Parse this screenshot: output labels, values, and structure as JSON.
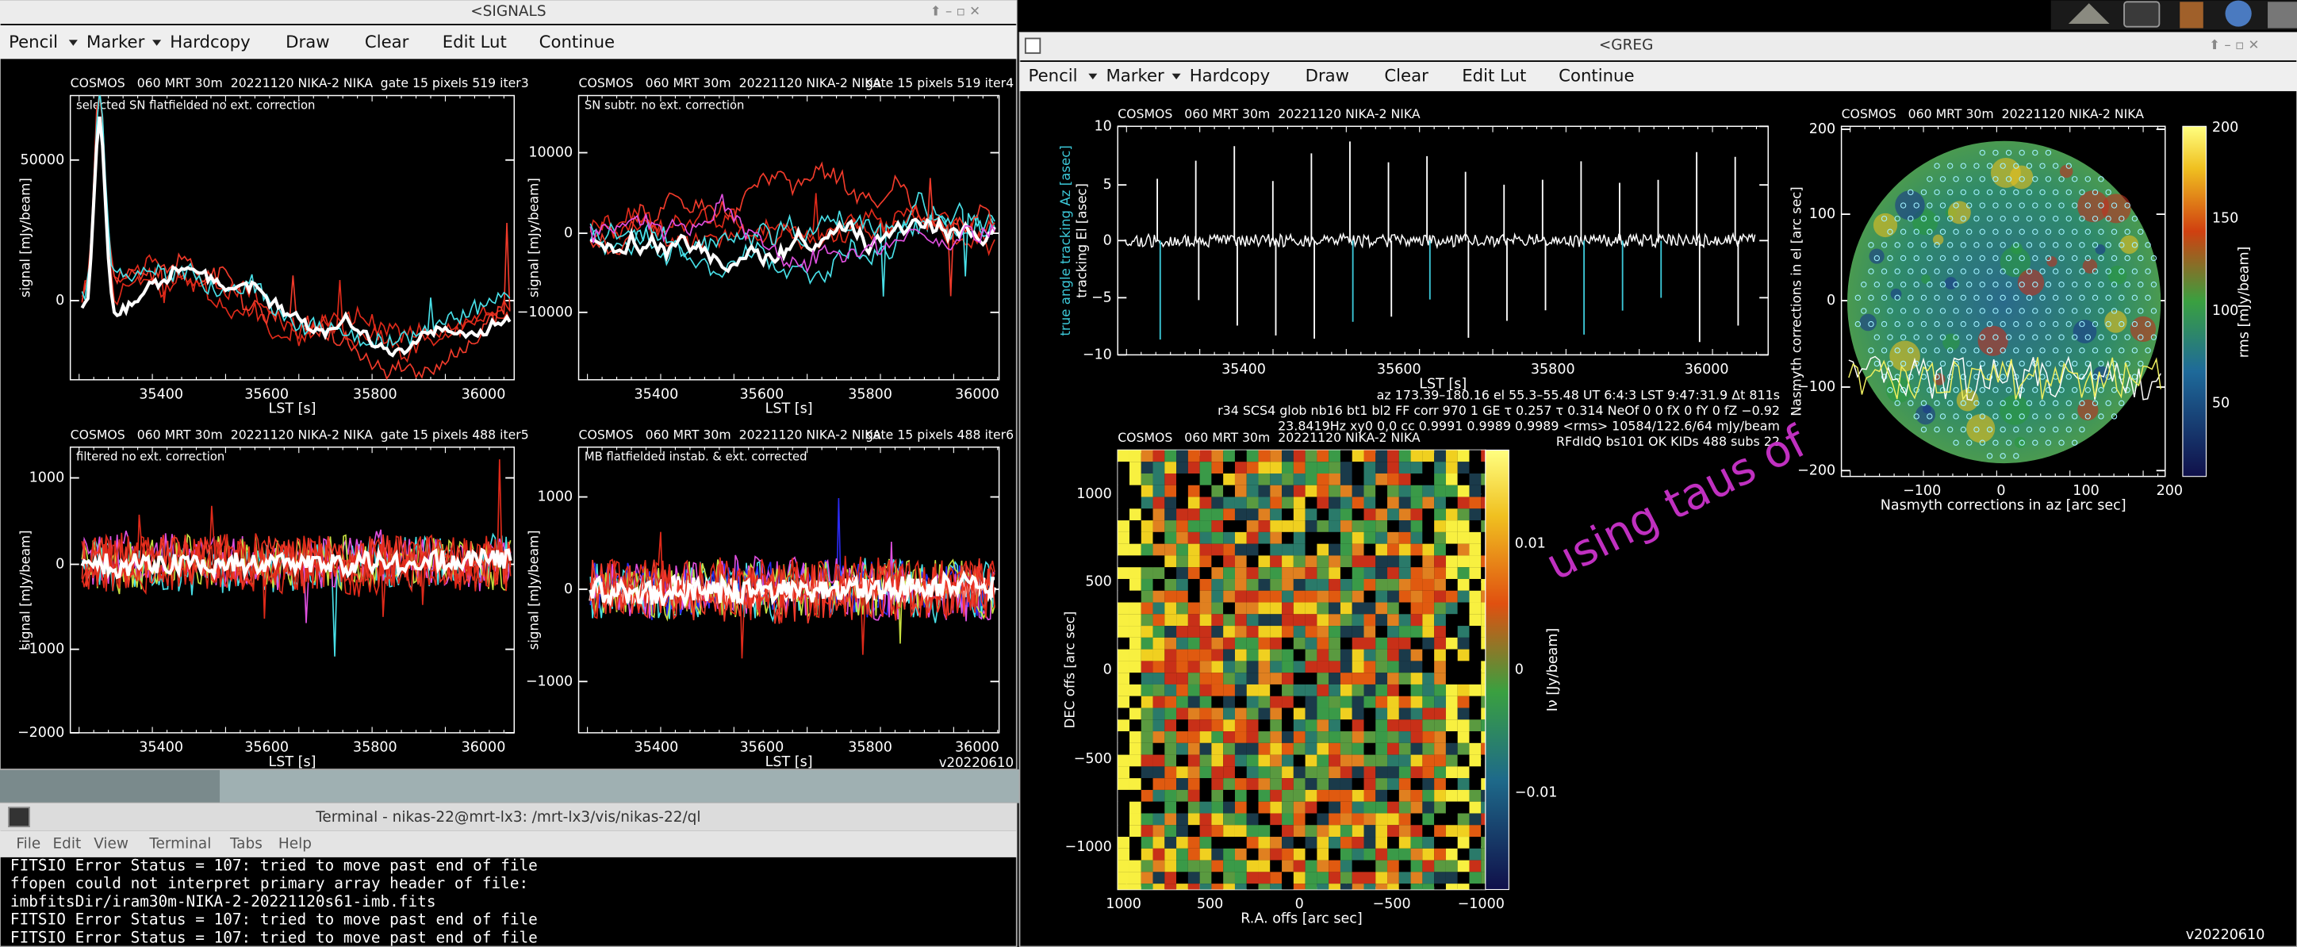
{
  "signals_window": {
    "title": "<SIGNALS",
    "menu": [
      "Pencil",
      "Marker",
      "Hardcopy",
      "Draw",
      "Clear",
      "Edit Lut",
      "Continue"
    ],
    "plots": [
      {
        "header": "COSMOS   060 MRT 30m  20221120 NIKA-2 NIKA",
        "header_right": "gate 15 pixels 519 iter3",
        "subtitle": "selected SN flatfielded no ext. correction",
        "ylabel": "signal [mJy/beam]",
        "xlabel": "LST [s]",
        "yticks": [
          "50000",
          "0"
        ],
        "xticks": [
          "35400",
          "35600",
          "35800",
          "36000"
        ]
      },
      {
        "header": "COSMOS   060 MRT 30m  20221120 NIKA-2 NIKA",
        "header_right": "gate 15 pixels 519 iter4",
        "subtitle": "SN subtr. no ext. correction",
        "ylabel": "signal [mJy/beam]",
        "xlabel": "LST [s]",
        "yticks": [
          "10000",
          "0",
          "−10000"
        ],
        "xticks": [
          "35400",
          "35600",
          "35800",
          "36000"
        ]
      },
      {
        "header": "COSMOS   060 MRT 30m  20221120 NIKA-2 NIKA",
        "header_right": "gate 15 pixels 488 iter5",
        "subtitle": "filtered no ext. correction",
        "ylabel": "signal [mJy/beam]",
        "xlabel": "LST [s]",
        "yticks": [
          "1000",
          "0",
          "−1000",
          "−2000"
        ],
        "xticks": [
          "35400",
          "35600",
          "35800",
          "36000"
        ]
      },
      {
        "header": "COSMOS   060 MRT 30m  20221120 NIKA-2 NIKA",
        "header_right": "gate 15 pixels 488 iter6",
        "subtitle": "MB flatfielded instab. & ext. corrected",
        "ylabel": "signal [mJy/beam]",
        "xlabel": "LST [s]",
        "yticks": [
          "1000",
          "0",
          "−1000"
        ],
        "xticks": [
          "35400",
          "35600",
          "35800",
          "36000"
        ]
      }
    ],
    "version": "v20220610"
  },
  "greg_window": {
    "title": "<GREG",
    "menu": [
      "Pencil",
      "Marker",
      "Hardcopy",
      "Draw",
      "Clear",
      "Edit Lut",
      "Continue"
    ],
    "tracking_plot": {
      "header": "COSMOS   060 MRT 30m  20221120 NIKA-2 NIKA",
      "ylabel": "tracking El [asec]",
      "ylabel2": "true angle tracking Az [asec]",
      "xlabel": "LST [s]",
      "yticks": [
        "10",
        "5",
        "0",
        "−5",
        "−10"
      ],
      "xticks": [
        "35400",
        "35600",
        "35800",
        "36000"
      ]
    },
    "info_lines": [
      "az 173.39–180.16 el 55.3–55.48 UT 6:4:3 LST 9:47:31.9 Δt 811s",
      "r34 SCS4 glob nb16 bt1 bl2 FF corr 970 1 GE τ 0.257 τ 0.314 NeOf 0 0 fX 0 fY 0 fZ −0.92",
      "23.8419Hz xy0 0,0 cc 0.9991 0.9989 0.9989 <rms> 10584/122.6/64 mJy/beam",
      "RFdIdQ bs101 OK KIDs 488 subs 22"
    ],
    "map_plot": {
      "header": "COSMOS   060 MRT 30m  20221120 NIKA-2 NIKA",
      "ylabel": "DEC offs [arc sec]",
      "xlabel": "R.A. offs [arc sec]",
      "yticks": [
        "1000",
        "500",
        "0",
        "−500",
        "−1000"
      ],
      "xticks": [
        "1000",
        "500",
        "0",
        "−500",
        "−1000"
      ],
      "colorbar_ticks": [
        "0.01",
        "0",
        "−0.01"
      ],
      "colorbar_label": "Iν [Jy/beam]"
    },
    "nasmyth_plot": {
      "header": "COSMOS   060 MRT 30m  20221120 NIKA-2 NIKA",
      "ylabel": "Nasmyth corrections in el [arc sec]",
      "xlabel": "Nasmyth corrections in az [arc sec]",
      "yticks": [
        "200",
        "100",
        "0",
        "−100",
        "−200"
      ],
      "xticks": [
        "−100",
        "0",
        "100",
        "200"
      ],
      "colorbar_ticks": [
        "200",
        "150",
        "100",
        "50"
      ],
      "colorbar_label": "rms [mJy/beam]"
    },
    "watermark": "using taus of",
    "version": "v20220610"
  },
  "terminal": {
    "title": "Terminal - nikas-22@mrt-lx3: /mrt-lx3/vis/nikas-22/ql",
    "menu": [
      "File",
      "Edit",
      "View",
      "Terminal",
      "Tabs",
      "Help"
    ],
    "lines": [
      "FITSIO Error Status = 107: tried to move past end of file",
      "ffopen could not interpret primary array header of file:",
      "imbfitsDir/iram30m-NIKA-2-20221120s61-imb.fits",
      "FITSIO Error Status = 107: tried to move past end of file",
      "FITSIO Error Status = 107: tried to move past end of file"
    ]
  }
}
